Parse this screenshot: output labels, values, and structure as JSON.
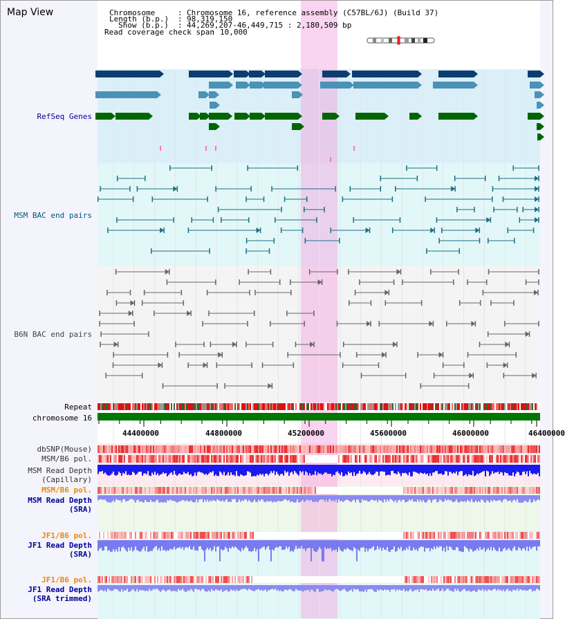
{
  "window": {
    "title": "Map View"
  },
  "info": {
    "chromosome_key": "Chromosome",
    "chromosome_val": "Chromosome 16, reference assembly (C57BL/6J) (Build 37)",
    "length_key": "Length (b.p.)",
    "length_val": "98,319,150",
    "show_key": "Show (b.p.)",
    "show_val": "44,269,207-46,449,715 : 2,180,509 bp",
    "span_key": "Read coverage check span",
    "span_val": "10,000"
  },
  "tracks": {
    "refseq": "RefSeq Genes",
    "msm_bac": "MSM BAC end pairs",
    "b6n_bac": "B6N BAC end pairs",
    "repeat": "Repeat",
    "chromosome": "chromosome 16",
    "dbsnp": "dbSNP(Mouse)",
    "msm_b6_pol": "MSM/B6 pol.",
    "msm_depth_cap_1": "MSM Read Depth",
    "msm_depth_cap_2": "(Capillary)",
    "msm_b6_pol2": "MSM/B6 pol.",
    "msm_depth_sra_1": "MSM Read Depth",
    "msm_depth_sra_2": "(SRA)",
    "jf1_b6_pol": "JF1/B6 pol.",
    "jf1_depth_sra_1": "JF1 Read Depth",
    "jf1_depth_sra_2": "(SRA)",
    "jf1_b6_pol2": "JF1/B6 pol.",
    "jf1_depth_trim_1": "JF1 Read Depth",
    "jf1_depth_trim_2": "(SRA trimmed)"
  },
  "axis": {
    "ticks": [
      "44400000",
      "44800000",
      "45200000",
      "45600000",
      "46000000",
      "46400000"
    ]
  },
  "colors": {
    "refseq_bg": "#dbeff8",
    "msm_bg": "#e2f7f7",
    "b6n_bg": "#f2f2f2",
    "highlight": "#f3a0de",
    "gene_dark": "#0d3c6e",
    "gene_mid": "#4a92b6",
    "gene_green": "#006600",
    "bac_teal": "#1c6e86",
    "bac_gray": "#666666",
    "chromosome": "#007700",
    "label_blue": "#000099",
    "label_orange": "#ee8800"
  }
}
